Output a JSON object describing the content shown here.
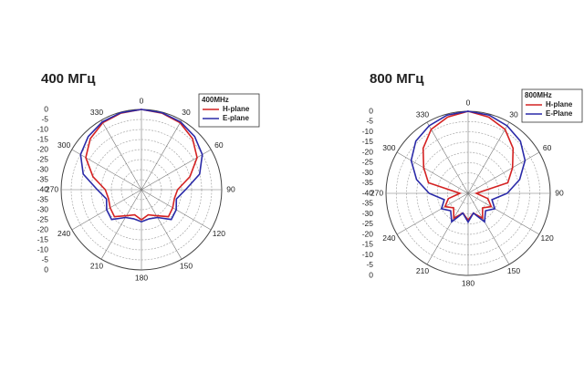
{
  "chart_data": [
    {
      "type": "polar",
      "title": "400 МГц",
      "legend_title": "400MHz",
      "rlim": [
        -40,
        0
      ],
      "rticks": [
        0,
        -5,
        -10,
        -15,
        -20,
        -25,
        -30,
        -35,
        -40
      ],
      "thetaticks": [
        0,
        30,
        60,
        90,
        120,
        150,
        180,
        210,
        240,
        270,
        300,
        330
      ],
      "theta": [
        0,
        15,
        30,
        45,
        60,
        75,
        90,
        105,
        120,
        135,
        150,
        165,
        180,
        195,
        210,
        225,
        240,
        255,
        270,
        285,
        300,
        315,
        330,
        345
      ],
      "series": [
        {
          "name": "H-plane",
          "color": "#d42222",
          "values": [
            0,
            -0.5,
            -1.5,
            -4,
            -8,
            -15,
            -22,
            -23,
            -22,
            -21,
            -25,
            -27,
            -25,
            -27,
            -25,
            -21,
            -22,
            -23,
            -22,
            -15,
            -8,
            -4,
            -1.5,
            -0.5
          ]
        },
        {
          "name": "E-plane",
          "color": "#2a2aa8",
          "values": [
            0,
            -0.3,
            -1,
            -2.5,
            -5,
            -10,
            -18,
            -22,
            -20,
            -19,
            -24,
            -25,
            -24,
            -25,
            -24,
            -19,
            -20,
            -22,
            -18,
            -10,
            -5,
            -2.5,
            -1,
            -0.3
          ]
        }
      ]
    },
    {
      "type": "polar",
      "title": "800 МГц",
      "legend_title": "800MHz",
      "rlim": [
        -40,
        0
      ],
      "rticks": [
        0,
        -5,
        -10,
        -15,
        -20,
        -25,
        -30,
        -35,
        -40
      ],
      "thetaticks": [
        0,
        30,
        60,
        90,
        120,
        150,
        180,
        210,
        240,
        270,
        300,
        330
      ],
      "theta": [
        0,
        15,
        30,
        45,
        60,
        75,
        90,
        105,
        120,
        135,
        150,
        165,
        180,
        195,
        210,
        225,
        240,
        255,
        270,
        285,
        300,
        315,
        330,
        345
      ],
      "series": [
        {
          "name": "H-plane",
          "color": "#d42222",
          "values": [
            0,
            -1.5,
            -4,
            -9,
            -15,
            -20,
            -36,
            -30,
            -27,
            -30,
            -26,
            -30,
            -27,
            -30,
            -26,
            -30,
            -27,
            -30,
            -36,
            -20,
            -15,
            -9,
            -4,
            -1.5
          ]
        },
        {
          "name": "E-Plane",
          "color": "#2a2aa8",
          "values": [
            0,
            -0.5,
            -2,
            -4,
            -8,
            -14,
            -21,
            -28,
            -25,
            -28,
            -24,
            -30,
            -26,
            -30,
            -24,
            -28,
            -25,
            -28,
            -21,
            -14,
            -8,
            -4,
            -2,
            -0.5
          ]
        }
      ]
    }
  ]
}
